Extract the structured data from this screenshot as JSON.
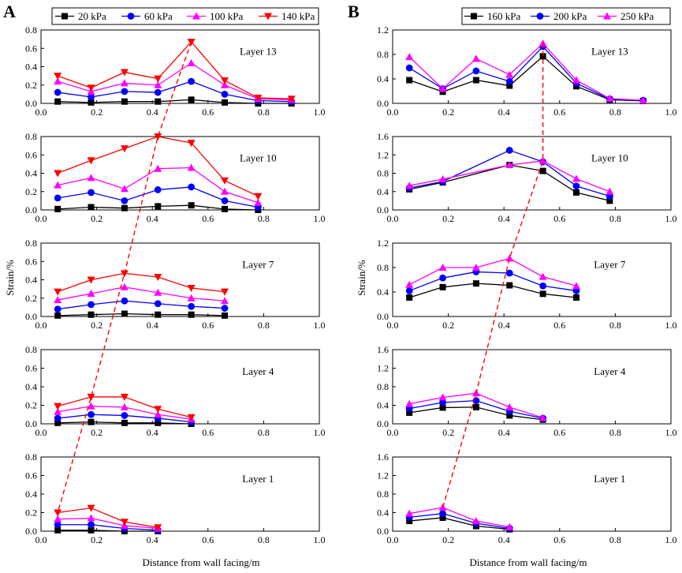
{
  "chart_data": {
    "type": "line",
    "xlabel": "Distance from wall facing/m",
    "ylabel": "Strain/%",
    "panels": [
      {
        "letter": "A",
        "xlim": [
          0,
          1.0
        ],
        "xticks": [
          0,
          0.2,
          0.4,
          0.6,
          0.8,
          1.0
        ],
        "series_meta": [
          {
            "name": "20 kPa",
            "color": "#000000",
            "marker": "square"
          },
          {
            "name": "60 kPa",
            "color": "#0000ff",
            "marker": "circle"
          },
          {
            "name": "100 kPa",
            "color": "#ff00ff",
            "marker": "triangle-up"
          },
          {
            "name": "140 kPa",
            "color": "#ff0000",
            "marker": "triangle-down"
          }
        ],
        "subplots": [
          {
            "label": "Layer 13",
            "ylim": [
              0,
              0.8
            ],
            "yticks": [
              0,
              0.2,
              0.4,
              0.6,
              0.8
            ],
            "x": [
              0.06,
              0.18,
              0.3,
              0.42,
              0.54,
              0.66,
              0.78,
              0.9
            ],
            "series": [
              {
                "name": "20 kPa",
                "values": [
                  0.02,
                  0.01,
                  0.02,
                  0.02,
                  0.04,
                  0.01,
                  0.0,
                  0.0
                ]
              },
              {
                "name": "60 kPa",
                "values": [
                  0.12,
                  0.07,
                  0.13,
                  0.12,
                  0.24,
                  0.1,
                  0.03,
                  0.02
                ]
              },
              {
                "name": "100 kPa",
                "values": [
                  0.24,
                  0.13,
                  0.22,
                  0.2,
                  0.44,
                  0.2,
                  0.05,
                  0.04
                ]
              },
              {
                "name": "140 kPa",
                "values": [
                  0.3,
                  0.17,
                  0.34,
                  0.27,
                  0.67,
                  0.25,
                  0.06,
                  0.05
                ]
              }
            ]
          },
          {
            "label": "Layer 10",
            "ylim": [
              0,
              0.8
            ],
            "yticks": [
              0,
              0.2,
              0.4,
              0.6,
              0.8
            ],
            "x": [
              0.06,
              0.18,
              0.3,
              0.42,
              0.54,
              0.66,
              0.78
            ],
            "series": [
              {
                "name": "20 kPa",
                "values": [
                  0.01,
                  0.03,
                  0.02,
                  0.04,
                  0.05,
                  0.01,
                  0.0
                ]
              },
              {
                "name": "60 kPa",
                "values": [
                  0.13,
                  0.19,
                  0.1,
                  0.22,
                  0.25,
                  0.1,
                  0.03
                ]
              },
              {
                "name": "100 kPa",
                "values": [
                  0.27,
                  0.35,
                  0.23,
                  0.45,
                  0.46,
                  0.2,
                  0.08
                ]
              },
              {
                "name": "140 kPa",
                "values": [
                  0.4,
                  0.54,
                  0.67,
                  0.8,
                  0.73,
                  0.32,
                  0.15
                ]
              }
            ]
          },
          {
            "label": "Layer 7",
            "ylim": [
              0,
              0.8
            ],
            "yticks": [
              0,
              0.2,
              0.4,
              0.6,
              0.8
            ],
            "x": [
              0.06,
              0.18,
              0.3,
              0.42,
              0.54,
              0.66
            ],
            "series": [
              {
                "name": "20 kPa",
                "values": [
                  0.01,
                  0.02,
                  0.03,
                  0.02,
                  0.02,
                  0.01
                ]
              },
              {
                "name": "60 kPa",
                "values": [
                  0.08,
                  0.13,
                  0.17,
                  0.14,
                  0.11,
                  0.09
                ]
              },
              {
                "name": "100 kPa",
                "values": [
                  0.18,
                  0.25,
                  0.32,
                  0.26,
                  0.2,
                  0.17
                ]
              },
              {
                "name": "140 kPa",
                "values": [
                  0.27,
                  0.4,
                  0.47,
                  0.43,
                  0.31,
                  0.27
                ]
              }
            ]
          },
          {
            "label": "Layer 4",
            "ylim": [
              0,
              0.8
            ],
            "yticks": [
              0,
              0.2,
              0.4,
              0.6,
              0.8
            ],
            "x": [
              0.06,
              0.18,
              0.3,
              0.42,
              0.54
            ],
            "series": [
              {
                "name": "20 kPa",
                "values": [
                  0.01,
                  0.02,
                  0.01,
                  0.01,
                  0.0
                ]
              },
              {
                "name": "60 kPa",
                "values": [
                  0.06,
                  0.1,
                  0.09,
                  0.06,
                  0.02
                ]
              },
              {
                "name": "100 kPa",
                "values": [
                  0.13,
                  0.19,
                  0.18,
                  0.1,
                  0.05
                ]
              },
              {
                "name": "140 kPa",
                "values": [
                  0.19,
                  0.29,
                  0.29,
                  0.16,
                  0.07
                ]
              }
            ]
          },
          {
            "label": "Layer 1",
            "ylim": [
              0,
              0.8
            ],
            "yticks": [
              0,
              0.2,
              0.4,
              0.6,
              0.8
            ],
            "x": [
              0.06,
              0.18,
              0.3,
              0.42
            ],
            "series": [
              {
                "name": "20 kPa",
                "values": [
                  0.01,
                  0.01,
                  0.0,
                  0.0
                ]
              },
              {
                "name": "60 kPa",
                "values": [
                  0.07,
                  0.07,
                  0.03,
                  0.01
                ]
              },
              {
                "name": "100 kPa",
                "values": [
                  0.13,
                  0.14,
                  0.06,
                  0.03
                ]
              },
              {
                "name": "140 kPa",
                "values": [
                  0.2,
                  0.25,
                  0.1,
                  0.04
                ]
              }
            ]
          }
        ],
        "peak_line": {
          "color": "#ff0000",
          "points": [
            [
              0.54,
              0.67
            ],
            [
              0.42,
              0.8
            ],
            [
              0.3,
              0.47
            ],
            [
              0.18,
              0.29
            ],
            [
              0.06,
              0.2
            ]
          ]
        }
      },
      {
        "letter": "B",
        "xlim": [
          0,
          1.0
        ],
        "xticks": [
          0,
          0.2,
          0.4,
          0.6,
          0.8,
          1.0
        ],
        "series_meta": [
          {
            "name": "160 kPa",
            "color": "#000000",
            "marker": "square"
          },
          {
            "name": "200 kPa",
            "color": "#0000ff",
            "marker": "circle"
          },
          {
            "name": "250 kPa",
            "color": "#ff00ff",
            "marker": "triangle-up"
          }
        ],
        "subplots": [
          {
            "label": "Layer 13",
            "ylim": [
              0,
              1.2
            ],
            "yticks": [
              0,
              0.4,
              0.8,
              1.2
            ],
            "x": [
              0.06,
              0.18,
              0.3,
              0.42,
              0.54,
              0.66,
              0.78,
              0.9
            ],
            "series": [
              {
                "name": "160 kPa",
                "values": [
                  0.38,
                  0.19,
                  0.38,
                  0.29,
                  0.77,
                  0.28,
                  0.06,
                  0.04
                ]
              },
              {
                "name": "200 kPa",
                "values": [
                  0.58,
                  0.24,
                  0.53,
                  0.36,
                  0.93,
                  0.33,
                  0.07,
                  0.05
                ]
              },
              {
                "name": "250 kPa",
                "values": [
                  0.76,
                  0.24,
                  0.73,
                  0.47,
                  0.98,
                  0.38,
                  0.08,
                  0.05
                ]
              }
            ]
          },
          {
            "label": "Layer 10",
            "ylim": [
              0,
              1.6
            ],
            "yticks": [
              0,
              0.4,
              0.8,
              1.2,
              1.6
            ],
            "x": [
              0.06,
              0.18,
              0.42,
              0.54,
              0.66,
              0.78
            ],
            "series": [
              {
                "name": "160 kPa",
                "values": [
                  0.45,
                  0.6,
                  0.98,
                  0.85,
                  0.38,
                  0.2
                ]
              },
              {
                "name": "200 kPa",
                "values": [
                  0.48,
                  0.62,
                  1.3,
                  1.05,
                  0.52,
                  0.3
                ]
              },
              {
                "name": "250 kPa",
                "values": [
                  0.53,
                  0.67,
                  0.98,
                  1.07,
                  0.68,
                  0.4
                ]
              }
            ]
          },
          {
            "label": "Layer 7",
            "ylim": [
              0,
              1.2
            ],
            "yticks": [
              0,
              0.4,
              0.8,
              1.2
            ],
            "x": [
              0.06,
              0.18,
              0.3,
              0.42,
              0.54,
              0.66
            ],
            "series": [
              {
                "name": "160 kPa",
                "values": [
                  0.31,
                  0.48,
                  0.54,
                  0.51,
                  0.37,
                  0.31
                ]
              },
              {
                "name": "200 kPa",
                "values": [
                  0.42,
                  0.63,
                  0.73,
                  0.71,
                  0.5,
                  0.42
                ]
              },
              {
                "name": "250 kPa",
                "values": [
                  0.52,
                  0.8,
                  0.8,
                  0.95,
                  0.65,
                  0.5
                ]
              }
            ]
          },
          {
            "label": "Layer 4",
            "ylim": [
              0,
              1.6
            ],
            "yticks": [
              0,
              0.4,
              0.8,
              1.2,
              1.6
            ],
            "x": [
              0.06,
              0.18,
              0.3,
              0.42,
              0.54
            ],
            "series": [
              {
                "name": "160 kPa",
                "values": [
                  0.24,
                  0.35,
                  0.36,
                  0.18,
                  0.09
                ]
              },
              {
                "name": "200 kPa",
                "values": [
                  0.33,
                  0.46,
                  0.5,
                  0.27,
                  0.12
                ]
              },
              {
                "name": "250 kPa",
                "values": [
                  0.43,
                  0.57,
                  0.66,
                  0.36,
                  0.13
                ]
              }
            ]
          },
          {
            "label": "Layer 1",
            "ylim": [
              0,
              1.6
            ],
            "yticks": [
              0,
              0.4,
              0.8,
              1.2,
              1.6
            ],
            "x": [
              0.06,
              0.18,
              0.3,
              0.42
            ],
            "series": [
              {
                "name": "160 kPa",
                "values": [
                  0.22,
                  0.29,
                  0.11,
                  0.04
                ]
              },
              {
                "name": "200 kPa",
                "values": [
                  0.3,
                  0.38,
                  0.17,
                  0.06
                ]
              },
              {
                "name": "250 kPa",
                "values": [
                  0.38,
                  0.51,
                  0.22,
                  0.09
                ]
              }
            ]
          }
        ],
        "peak_line": {
          "color": "#ff0000",
          "points": [
            [
              0.54,
              0.98
            ],
            [
              0.54,
              1.07
            ],
            [
              0.42,
              0.95
            ],
            [
              0.3,
              0.66
            ],
            [
              0.18,
              0.51
            ]
          ]
        }
      }
    ]
  }
}
